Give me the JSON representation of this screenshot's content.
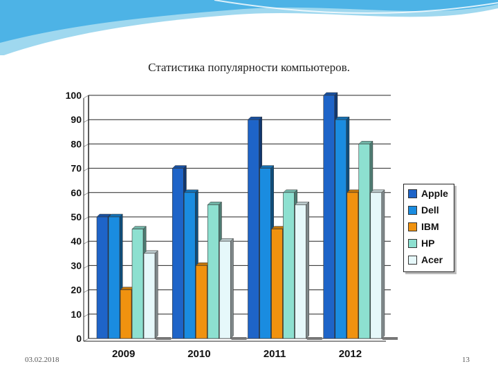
{
  "slide": {
    "title": "Статистика популярности компьютеров.",
    "date": "03.02.2018",
    "page_number": "13"
  },
  "colors": {
    "apple": "#1e64c8",
    "dell": "#1a8ce0",
    "ibm": "#f0920f",
    "hp": "#8de0d0",
    "acer": "#e6f8fa"
  },
  "chart_data": {
    "type": "bar",
    "title": "",
    "xlabel": "",
    "ylabel": "",
    "categories": [
      "2009",
      "2010",
      "2011",
      "2012"
    ],
    "ylim": [
      0,
      100
    ],
    "yticks": [
      "0",
      "10",
      "20",
      "30",
      "40",
      "50",
      "60",
      "70",
      "80",
      "90",
      "100"
    ],
    "grid": true,
    "legend_position": "right",
    "series": [
      {
        "name": "Apple",
        "values": [
          50,
          70,
          90,
          100
        ]
      },
      {
        "name": "Dell",
        "values": [
          50,
          60,
          70,
          90
        ]
      },
      {
        "name": "IBM",
        "values": [
          20,
          30,
          45,
          60
        ]
      },
      {
        "name": "HP",
        "values": [
          45,
          55,
          60,
          80
        ]
      },
      {
        "name": "Acer",
        "values": [
          35,
          40,
          55,
          60
        ]
      }
    ]
  }
}
